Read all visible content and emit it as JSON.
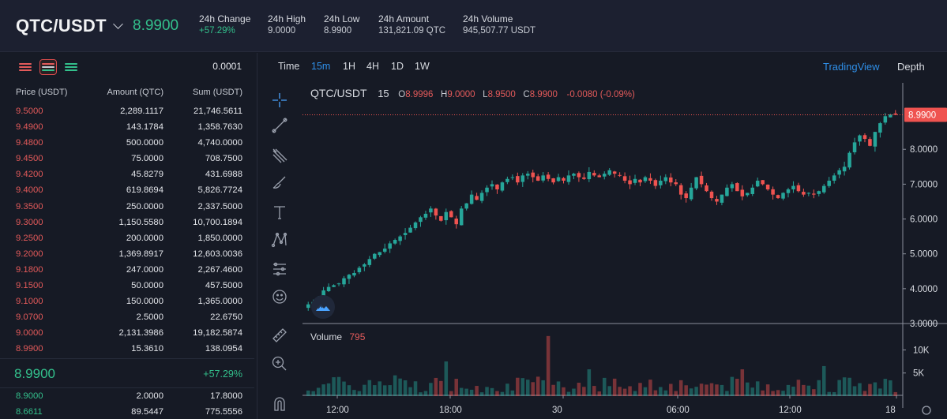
{
  "header": {
    "pair": "QTC/USDT",
    "last_price": "8.9900",
    "stats": [
      {
        "label": "24h Change",
        "value": "+57.29%",
        "tone": "up"
      },
      {
        "label": "24h High",
        "value": "9.0000",
        "tone": "neutral"
      },
      {
        "label": "24h Low",
        "value": "8.9900",
        "tone": "neutral"
      },
      {
        "label": "24h Amount",
        "value": "131,821.09 QTC",
        "tone": "neutral"
      },
      {
        "label": "24h Volume",
        "value": "945,507.77 USDT",
        "tone": "neutral"
      }
    ]
  },
  "orderbook": {
    "precision": "0.0001",
    "columns": [
      "Price (USDT)",
      "Amount (QTC)",
      "Sum (USDT)"
    ],
    "asks": [
      [
        "9.5000",
        "2,289.1117",
        "21,746.5611"
      ],
      [
        "9.4900",
        "143.1784",
        "1,358.7630"
      ],
      [
        "9.4800",
        "500.0000",
        "4,740.0000"
      ],
      [
        "9.4500",
        "75.0000",
        "708.7500"
      ],
      [
        "9.4200",
        "45.8279",
        "431.6988"
      ],
      [
        "9.4000",
        "619.8694",
        "5,826.7724"
      ],
      [
        "9.3500",
        "250.0000",
        "2,337.5000"
      ],
      [
        "9.3000",
        "1,150.5580",
        "10,700.1894"
      ],
      [
        "9.2500",
        "200.0000",
        "1,850.0000"
      ],
      [
        "9.2000",
        "1,369.8917",
        "12,603.0036"
      ],
      [
        "9.1800",
        "247.0000",
        "2,267.4600"
      ],
      [
        "9.1500",
        "50.0000",
        "457.5000"
      ],
      [
        "9.1000",
        "150.0000",
        "1,365.0000"
      ],
      [
        "9.0700",
        "2.5000",
        "22.6750"
      ],
      [
        "9.0000",
        "2,131.3986",
        "19,182.5874"
      ],
      [
        "8.9900",
        "15.3610",
        "138.0954"
      ]
    ],
    "mid_price": "8.9900",
    "mid_change": "+57.29%",
    "bids": [
      [
        "8.9000",
        "2.0000",
        "17.8000"
      ],
      [
        "8.6611",
        "89.5447",
        "775.5556"
      ]
    ]
  },
  "chart": {
    "timeframes": [
      "Time",
      "15m",
      "1H",
      "4H",
      "1D",
      "1W"
    ],
    "active_timeframe": "15m",
    "views": [
      "TradingView",
      "Depth"
    ],
    "legend": {
      "symbol": "QTC/USDT",
      "resolution": "15",
      "open_label": "O",
      "open": "8.9996",
      "high_label": "H",
      "high": "9.0000",
      "low_label": "L",
      "low": "8.9500",
      "close_label": "C",
      "close": "8.9900",
      "change": "-0.0080 (-0.09%)"
    },
    "volume_label": "Volume",
    "volume_value": "795",
    "price_ticks": [
      "8.0000",
      "7.0000",
      "6.0000",
      "5.0000",
      "4.0000",
      "3.0000"
    ],
    "last_price_tag": "8.9900",
    "volume_ticks": [
      "10K",
      "5K"
    ],
    "time_ticks": [
      "12:00",
      "18:00",
      "30",
      "06:00",
      "12:00",
      "18"
    ],
    "tools": [
      "crosshair-icon",
      "trendline-icon",
      "fib-icon",
      "brush-icon",
      "text-icon",
      "pattern-icon",
      "forecast-icon",
      "emoji-icon",
      "ruler-icon",
      "zoom-icon",
      "magnet-icon"
    ],
    "colors": {
      "up": "#26a69a",
      "down": "#ef5350",
      "accent": "#2f8fe8"
    }
  },
  "chart_data": {
    "type": "candlestick",
    "interval": "15m",
    "ylim": [
      3.0,
      9.5
    ],
    "price_axis_ticks": [
      3,
      4,
      5,
      6,
      7,
      8
    ],
    "candles_close": [
      3.55,
      3.62,
      3.7,
      3.95,
      4.05,
      4.1,
      4.15,
      4.3,
      4.4,
      4.45,
      4.6,
      4.7,
      4.85,
      5.0,
      5.05,
      5.15,
      5.3,
      5.4,
      5.5,
      5.6,
      5.75,
      5.9,
      6.05,
      6.15,
      6.3,
      6.1,
      5.95,
      6.2,
      6.05,
      5.85,
      6.3,
      6.45,
      6.7,
      6.55,
      6.75,
      6.9,
      7.0,
      6.85,
      7.05,
      7.15,
      7.2,
      7.05,
      7.25,
      7.3,
      7.2,
      7.1,
      7.25,
      7.15,
      7.05,
      7.2,
      7.1,
      7.25,
      7.3,
      7.2,
      7.15,
      7.35,
      7.25,
      7.2,
      7.3,
      7.4,
      7.3,
      7.25,
      7.1,
      7.0,
      7.15,
      7.05,
      7.2,
      7.1,
      6.95,
      7.1,
      7.2,
      7.05,
      7.0,
      6.7,
      6.6,
      6.9,
      7.2,
      7.0,
      6.8,
      6.6,
      6.5,
      6.7,
      6.9,
      7.0,
      6.8,
      6.65,
      6.75,
      6.9,
      7.1,
      7.0,
      6.85,
      6.7,
      6.6,
      6.75,
      6.85,
      6.95,
      6.8,
      6.7,
      6.75,
      6.7,
      6.8,
      6.95,
      7.1,
      7.25,
      7.4,
      7.5,
      7.9,
      8.2,
      8.4,
      8.3,
      8.1,
      8.5,
      8.75,
      8.95,
      9.0,
      8.99
    ],
    "volume_axis_ticks": [
      "5K",
      "10K"
    ],
    "volume_max": 14000,
    "time_axis": [
      "12:00",
      "18:00",
      "30",
      "06:00",
      "12:00",
      "18"
    ],
    "last_price": 8.99
  }
}
